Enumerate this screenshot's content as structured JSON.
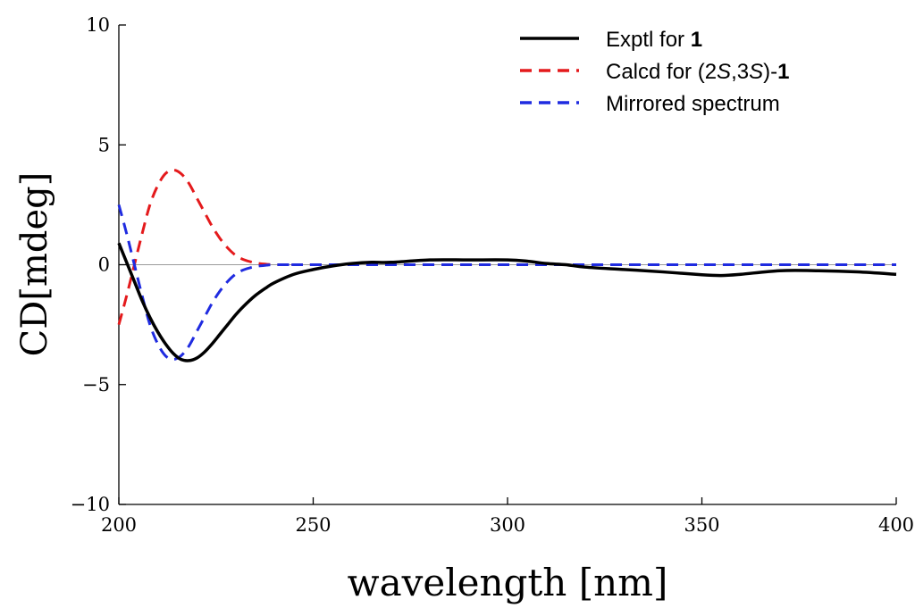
{
  "chart_data": {
    "type": "line",
    "title": "",
    "xlabel": "wavelength [nm]",
    "ylabel": "CD[mdeg]",
    "xlim": [
      200,
      400
    ],
    "ylim": [
      -10,
      10
    ],
    "xticks": [
      200,
      250,
      300,
      350,
      400
    ],
    "yticks": [
      -10,
      -5,
      0,
      5,
      10
    ],
    "xtick_labels": [
      "200",
      "250",
      "300",
      "350",
      "400"
    ],
    "ytick_labels": [
      "−10",
      "−5",
      "0",
      "5",
      "10"
    ],
    "grid": false,
    "zero_line": true,
    "legend_position": "top-right",
    "legend": {
      "exptl": {
        "prefix": "Exptl for ",
        "bold": "1"
      },
      "calcd": {
        "prefix": "Calcd for (2",
        "s1": "S",
        "mid": ",3",
        "s2": "S",
        "close": ")-",
        "bold": "1"
      },
      "mirrored": {
        "text": "Mirrored spectrum"
      }
    },
    "series": [
      {
        "name": "Exptl for 1",
        "color": "#000000",
        "style": "solid",
        "x": [
          200,
          202,
          204,
          206,
          208,
          210,
          212,
          214,
          216,
          218,
          220,
          222,
          224,
          226,
          228,
          230,
          232,
          235,
          238,
          240,
          245,
          250,
          255,
          260,
          265,
          270,
          280,
          290,
          300,
          305,
          310,
          315,
          320,
          330,
          340,
          350,
          355,
          360,
          370,
          380,
          390,
          400
        ],
        "y": [
          0.9,
          0.1,
          -0.7,
          -1.5,
          -2.2,
          -2.8,
          -3.3,
          -3.7,
          -3.95,
          -4.0,
          -3.9,
          -3.65,
          -3.3,
          -2.9,
          -2.5,
          -2.1,
          -1.75,
          -1.3,
          -0.95,
          -0.75,
          -0.4,
          -0.2,
          -0.05,
          0.05,
          0.1,
          0.1,
          0.2,
          0.2,
          0.2,
          0.15,
          0.05,
          0.0,
          -0.1,
          -0.2,
          -0.3,
          -0.42,
          -0.45,
          -0.4,
          -0.25,
          -0.25,
          -0.3,
          -0.4
        ]
      },
      {
        "name": "Calcd for (2S,3S)-1",
        "color": "#e41a1c",
        "style": "dashed",
        "x": [
          200,
          202,
          204,
          206,
          208,
          210,
          212,
          214,
          216,
          218,
          220,
          222,
          224,
          226,
          228,
          230,
          232,
          235,
          238,
          240,
          245,
          250,
          300,
          350,
          400
        ],
        "y": [
          -2.5,
          -1.3,
          0.0,
          1.3,
          2.5,
          3.3,
          3.8,
          3.95,
          3.8,
          3.4,
          2.8,
          2.2,
          1.6,
          1.1,
          0.7,
          0.4,
          0.22,
          0.08,
          0.02,
          0.0,
          0.0,
          0.0,
          0.0,
          0.0,
          0.0
        ]
      },
      {
        "name": "Mirrored spectrum",
        "color": "#1f2be0",
        "style": "dashed",
        "x": [
          200,
          202,
          204,
          206,
          208,
          210,
          212,
          214,
          216,
          218,
          220,
          222,
          224,
          226,
          228,
          230,
          232,
          235,
          238,
          240,
          245,
          250,
          300,
          350,
          400
        ],
        "y": [
          2.5,
          1.3,
          0.0,
          -1.3,
          -2.5,
          -3.3,
          -3.8,
          -3.95,
          -3.8,
          -3.4,
          -2.8,
          -2.2,
          -1.6,
          -1.1,
          -0.7,
          -0.4,
          -0.22,
          -0.08,
          -0.02,
          0.0,
          0.0,
          0.0,
          0.0,
          0.0,
          0.0
        ]
      }
    ]
  }
}
